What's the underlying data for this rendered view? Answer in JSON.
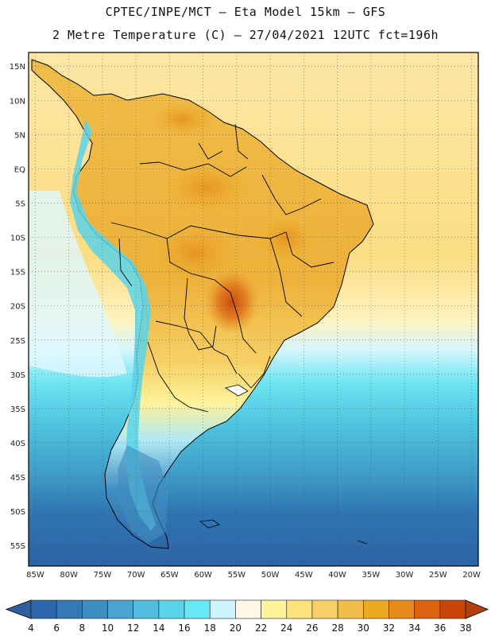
{
  "header": {
    "line1": "CPTEC/INPE/MCT –  Eta Model 15km – GFS",
    "line2": "2 Metre Temperature (C) – 27/04/2021 12UTC fct=196h"
  },
  "map": {
    "lon_range": [
      -86,
      -19
    ],
    "lat_range": [
      -58,
      17
    ],
    "lat_ticks": [
      {
        "value": 15,
        "label": "15N"
      },
      {
        "value": 10,
        "label": "10N"
      },
      {
        "value": 5,
        "label": "5N"
      },
      {
        "value": 0,
        "label": "EQ"
      },
      {
        "value": -5,
        "label": "5S"
      },
      {
        "value": -10,
        "label": "10S"
      },
      {
        "value": -15,
        "label": "15S"
      },
      {
        "value": -20,
        "label": "20S"
      },
      {
        "value": -25,
        "label": "25S"
      },
      {
        "value": -30,
        "label": "30S"
      },
      {
        "value": -35,
        "label": "35S"
      },
      {
        "value": -40,
        "label": "40S"
      },
      {
        "value": -45,
        "label": "45S"
      },
      {
        "value": -50,
        "label": "50S"
      },
      {
        "value": -55,
        "label": "55S"
      }
    ],
    "lon_ticks": [
      {
        "value": -85,
        "label": "85W"
      },
      {
        "value": -80,
        "label": "80W"
      },
      {
        "value": -75,
        "label": "75W"
      },
      {
        "value": -70,
        "label": "70W"
      },
      {
        "value": -65,
        "label": "65W"
      },
      {
        "value": -60,
        "label": "60W"
      },
      {
        "value": -55,
        "label": "55W"
      },
      {
        "value": -50,
        "label": "50W"
      },
      {
        "value": -45,
        "label": "45W"
      },
      {
        "value": -40,
        "label": "40W"
      },
      {
        "value": -35,
        "label": "35W"
      },
      {
        "value": -30,
        "label": "30W"
      },
      {
        "value": -25,
        "label": "25W"
      },
      {
        "value": -20,
        "label": "20W"
      }
    ]
  },
  "colorbar": {
    "labels": [
      "4",
      "6",
      "8",
      "10",
      "12",
      "14",
      "16",
      "18",
      "20",
      "22",
      "24",
      "26",
      "28",
      "30",
      "32",
      "34",
      "36",
      "38"
    ],
    "colors": {
      "under": "#2e5fa0",
      "bins": [
        "#2c67ac",
        "#3478b6",
        "#3f8ec2",
        "#4aa4cf",
        "#52bcdc",
        "#5bd3e8",
        "#66e9f5",
        "#ccf6ff",
        "#fff8e6",
        "#fff29a",
        "#fbe27a",
        "#f6d066",
        "#f0bd4a",
        "#ebaa1f",
        "#e58a1b",
        "#dc6212",
        "#c84509"
      ],
      "over": "#b5400c",
      "border": "#1d1d1d",
      "land_outline": "#000000"
    }
  }
}
